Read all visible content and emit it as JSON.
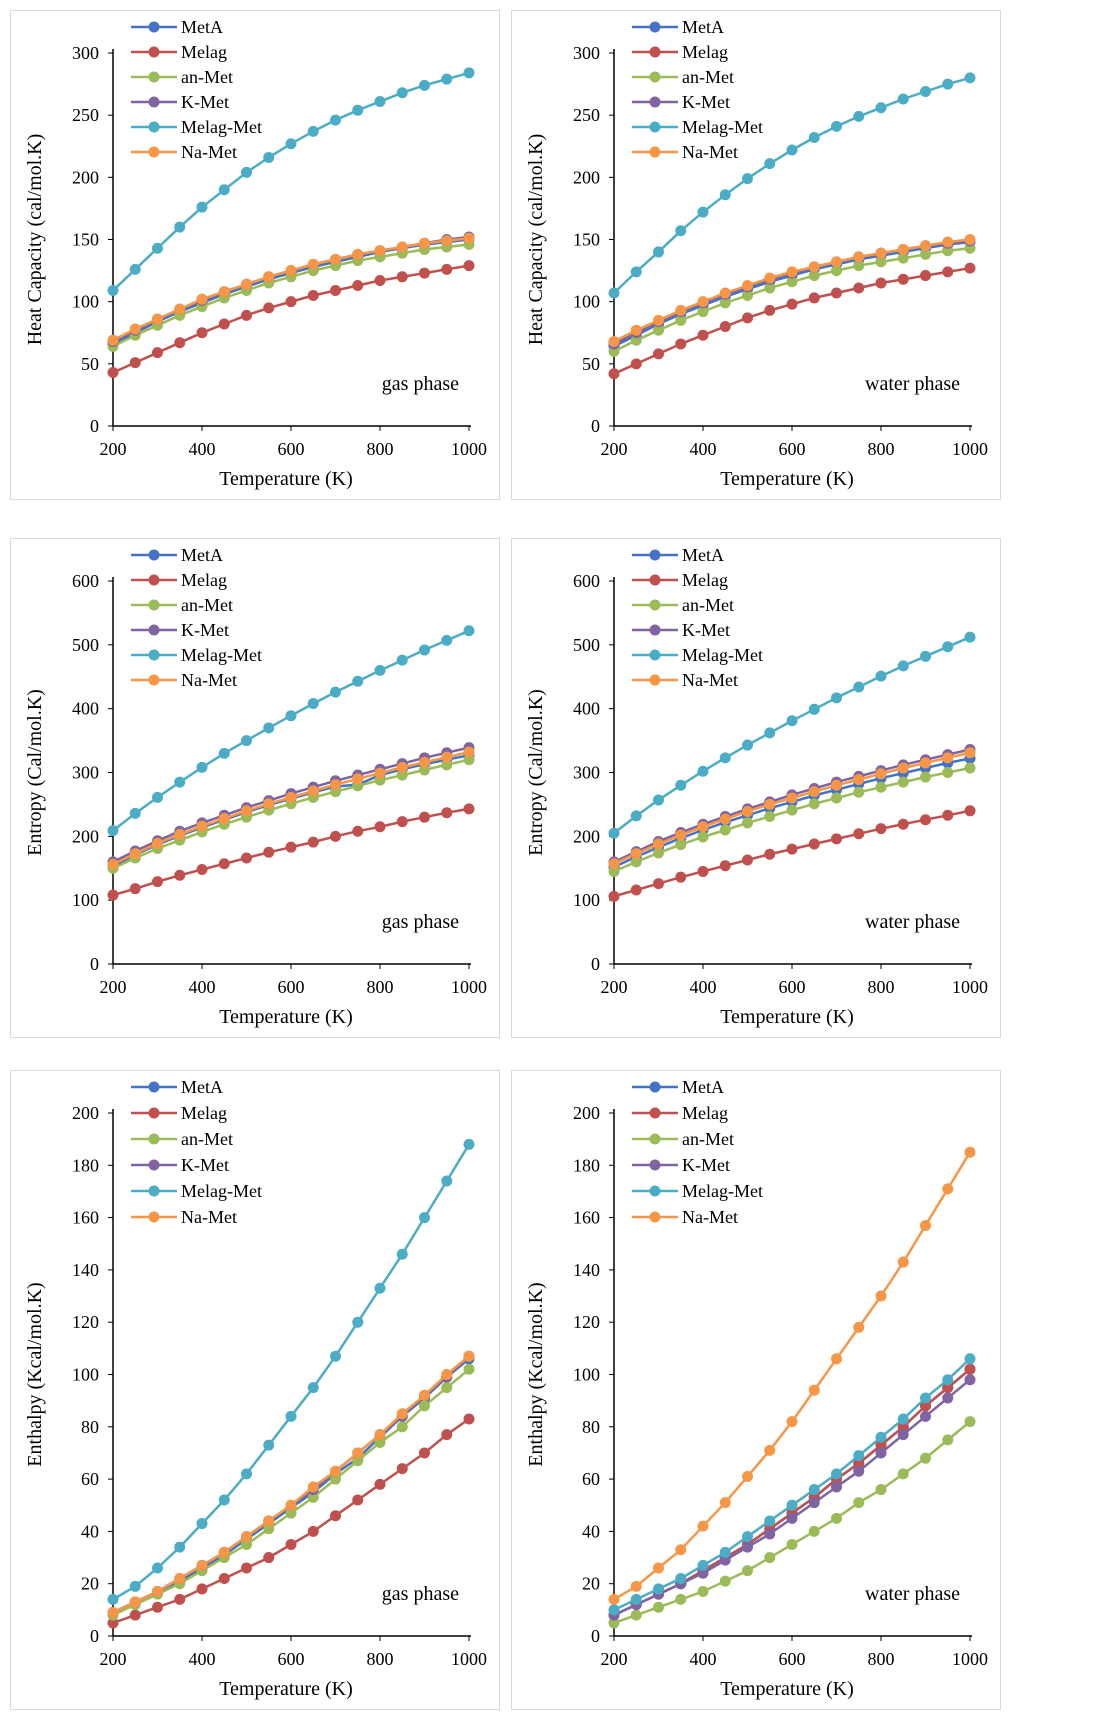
{
  "colors": {
    "MetA": "#4472C4",
    "Melag": "#C0504D",
    "an-Met": "#9BBB59",
    "K-Met": "#8064A2",
    "Melag-Met": "#4BACC6",
    "Na-Met": "#F79646"
  },
  "chart_data": [
    {
      "type": "line",
      "xlabel": "Temperature (K)",
      "ylabel": "Heat Capacity (cal/mol.K)",
      "annotation": "gas phase",
      "xlim": [
        200,
        1000
      ],
      "ylim": [
        0,
        300
      ],
      "yticks": [
        "0",
        "50",
        "100",
        "150",
        "200",
        "250",
        "300"
      ],
      "xticks": [
        "200",
        "400",
        "600",
        "800",
        "1000"
      ],
      "x": [
        200,
        250,
        300,
        350,
        400,
        450,
        500,
        550,
        600,
        650,
        700,
        750,
        800,
        850,
        900,
        950,
        1000
      ],
      "legend_position": "top-left",
      "series": [
        {
          "name": "MetA",
          "values": [
            66,
            75,
            84,
            92,
            99,
            106,
            112,
            118,
            123,
            128,
            132,
            136,
            140,
            143,
            146,
            148,
            150
          ]
        },
        {
          "name": "Melag",
          "values": [
            43,
            51,
            59,
            67,
            75,
            82,
            89,
            95,
            100,
            105,
            109,
            113,
            117,
            120,
            123,
            126,
            129
          ]
        },
        {
          "name": "an-Met",
          "values": [
            64,
            73,
            81,
            89,
            96,
            103,
            109,
            115,
            120,
            125,
            129,
            133,
            136,
            139,
            142,
            144,
            146
          ]
        },
        {
          "name": "K-Met",
          "values": [
            68,
            77,
            86,
            94,
            101,
            108,
            114,
            120,
            125,
            130,
            134,
            138,
            141,
            144,
            147,
            150,
            152
          ]
        },
        {
          "name": "Melag-Met",
          "values": [
            109,
            126,
            143,
            160,
            176,
            190,
            204,
            216,
            227,
            237,
            246,
            254,
            261,
            268,
            274,
            279,
            284
          ]
        },
        {
          "name": "Na-Met",
          "values": [
            69,
            78,
            86,
            94,
            102,
            108,
            114,
            120,
            125,
            130,
            134,
            138,
            141,
            144,
            147,
            149,
            151
          ]
        }
      ]
    },
    {
      "type": "line",
      "xlabel": "Temperature (K)",
      "ylabel": "Heat Capacity (cal/mol.K)",
      "annotation": "water phase",
      "xlim": [
        200,
        1000
      ],
      "ylim": [
        0,
        300
      ],
      "yticks": [
        "0",
        "50",
        "100",
        "150",
        "200",
        "250",
        "300"
      ],
      "xticks": [
        "200",
        "400",
        "600",
        "800",
        "1000"
      ],
      "x": [
        200,
        250,
        300,
        350,
        400,
        450,
        500,
        550,
        600,
        650,
        700,
        750,
        800,
        850,
        900,
        950,
        1000
      ],
      "legend_position": "top-left",
      "series": [
        {
          "name": "MetA",
          "values": [
            64,
            73,
            82,
            90,
            97,
            104,
            110,
            116,
            121,
            126,
            130,
            134,
            137,
            140,
            143,
            146,
            148
          ]
        },
        {
          "name": "Melag",
          "values": [
            42,
            50,
            58,
            66,
            73,
            80,
            87,
            93,
            98,
            103,
            107,
            111,
            115,
            118,
            121,
            124,
            127
          ]
        },
        {
          "name": "an-Met",
          "values": [
            60,
            69,
            77,
            85,
            92,
            99,
            105,
            111,
            116,
            121,
            125,
            129,
            132,
            135,
            138,
            141,
            143
          ]
        },
        {
          "name": "K-Met",
          "values": [
            66,
            75,
            84,
            92,
            99,
            106,
            112,
            118,
            123,
            128,
            132,
            136,
            139,
            142,
            145,
            147,
            149
          ]
        },
        {
          "name": "Melag-Met",
          "values": [
            107,
            124,
            140,
            157,
            172,
            186,
            199,
            211,
            222,
            232,
            241,
            249,
            256,
            263,
            269,
            275,
            280
          ]
        },
        {
          "name": "Na-Met",
          "values": [
            68,
            77,
            85,
            93,
            100,
            107,
            113,
            119,
            124,
            128,
            132,
            136,
            139,
            142,
            145,
            148,
            150
          ]
        }
      ]
    },
    {
      "type": "line",
      "xlabel": "Temperature (K)",
      "ylabel": "Entropy (Cal/mol.K)",
      "annotation": "gas phase",
      "xlim": [
        200,
        1000
      ],
      "ylim": [
        0,
        600
      ],
      "yticks": [
        "0",
        "100",
        "200",
        "300",
        "400",
        "500",
        "600"
      ],
      "xticks": [
        "200",
        "400",
        "600",
        "800",
        "1000"
      ],
      "x": [
        200,
        250,
        300,
        350,
        400,
        450,
        500,
        550,
        600,
        650,
        700,
        750,
        800,
        850,
        900,
        950,
        1000
      ],
      "legend_position": "top-left",
      "series": [
        {
          "name": "MetA",
          "values": [
            153,
            171,
            187,
            201,
            214,
            226,
            238,
            249,
            259,
            269,
            278,
            281,
            296,
            305,
            313,
            320,
            327
          ]
        },
        {
          "name": "Melag",
          "values": [
            108,
            118,
            129,
            139,
            148,
            157,
            166,
            175,
            183,
            191,
            200,
            208,
            215,
            223,
            230,
            237,
            243
          ]
        },
        {
          "name": "an-Met",
          "values": [
            150,
            166,
            181,
            194,
            207,
            219,
            230,
            241,
            251,
            261,
            270,
            279,
            288,
            296,
            304,
            312,
            320
          ]
        },
        {
          "name": "K-Met",
          "values": [
            160,
            177,
            193,
            208,
            221,
            233,
            245,
            256,
            267,
            277,
            287,
            296,
            305,
            314,
            323,
            331,
            339
          ]
        },
        {
          "name": "Melag-Met",
          "values": [
            209,
            236,
            261,
            285,
            308,
            330,
            350,
            370,
            389,
            408,
            426,
            443,
            460,
            476,
            492,
            507,
            522
          ]
        },
        {
          "name": "Na-Met",
          "values": [
            156,
            173,
            189,
            203,
            216,
            228,
            240,
            251,
            261,
            271,
            281,
            290,
            299,
            308,
            316,
            324,
            332
          ]
        }
      ]
    },
    {
      "type": "line",
      "xlabel": "Temperature (K)",
      "ylabel": "Entropy (Cal/mol.K)",
      "annotation": "water phase",
      "xlim": [
        200,
        1000
      ],
      "ylim": [
        0,
        600
      ],
      "yticks": [
        "0",
        "100",
        "200",
        "300",
        "400",
        "500",
        "600"
      ],
      "xticks": [
        "200",
        "400",
        "600",
        "800",
        "1000"
      ],
      "x": [
        200,
        250,
        300,
        350,
        400,
        450,
        500,
        550,
        600,
        650,
        700,
        750,
        800,
        850,
        900,
        950,
        1000
      ],
      "legend_position": "top-left",
      "series": [
        {
          "name": "MetA",
          "values": [
            152,
            168,
            183,
            197,
            210,
            222,
            233,
            244,
            254,
            264,
            273,
            282,
            291,
            299,
            307,
            315,
            322
          ]
        },
        {
          "name": "Melag",
          "values": [
            106,
            116,
            126,
            136,
            145,
            154,
            163,
            172,
            180,
            188,
            196,
            204,
            212,
            219,
            226,
            233,
            240
          ]
        },
        {
          "name": "an-Met",
          "values": [
            145,
            160,
            174,
            187,
            199,
            210,
            221,
            231,
            241,
            251,
            260,
            269,
            277,
            285,
            293,
            300,
            307
          ]
        },
        {
          "name": "K-Met",
          "values": [
            160,
            176,
            192,
            206,
            219,
            231,
            243,
            254,
            265,
            275,
            285,
            294,
            303,
            312,
            320,
            328,
            336
          ]
        },
        {
          "name": "Melag-Met",
          "values": [
            205,
            232,
            257,
            280,
            302,
            323,
            343,
            362,
            381,
            399,
            417,
            434,
            451,
            467,
            482,
            497,
            512
          ]
        },
        {
          "name": "Na-Met",
          "values": [
            157,
            173,
            188,
            202,
            215,
            227,
            239,
            250,
            260,
            270,
            280,
            289,
            298,
            307,
            315,
            323,
            331
          ]
        }
      ]
    },
    {
      "type": "line",
      "xlabel": "Temperature (K)",
      "ylabel": "Enthalpy (Kcal/mol.K)",
      "annotation": "gas phase",
      "xlim": [
        200,
        1000
      ],
      "ylim": [
        0,
        200
      ],
      "yticks": [
        "0",
        "20",
        "40",
        "60",
        "80",
        "100",
        "120",
        "140",
        "160",
        "180",
        "200"
      ],
      "xticks": [
        "200",
        "400",
        "600",
        "800",
        "1000"
      ],
      "x": [
        200,
        250,
        300,
        350,
        400,
        450,
        500,
        550,
        600,
        650,
        700,
        750,
        800,
        850,
        900,
        950,
        1000
      ],
      "legend_position": "top-left",
      "series": [
        {
          "name": "MetA",
          "values": [
            9,
            13,
            17,
            21,
            26,
            31,
            37,
            43,
            49,
            55,
            62,
            68,
            76,
            84,
            91,
            99,
            106
          ]
        },
        {
          "name": "Melag",
          "values": [
            5,
            8,
            11,
            14,
            18,
            22,
            26,
            30,
            35,
            40,
            46,
            52,
            58,
            64,
            70,
            77,
            83
          ]
        },
        {
          "name": "an-Met",
          "values": [
            8,
            12,
            16,
            20,
            25,
            30,
            35,
            41,
            47,
            53,
            60,
            67,
            74,
            80,
            88,
            95,
            102
          ]
        },
        {
          "name": "K-Met",
          "values": [
            9,
            13,
            17,
            22,
            27,
            32,
            38,
            44,
            50,
            56,
            63,
            70,
            77,
            84,
            92,
            99,
            107
          ]
        },
        {
          "name": "Melag-Met",
          "values": [
            14,
            19,
            26,
            34,
            43,
            52,
            62,
            73,
            84,
            95,
            107,
            120,
            133,
            146,
            160,
            174,
            188
          ]
        },
        {
          "name": "Na-Met",
          "values": [
            9,
            13,
            17,
            22,
            27,
            32,
            38,
            44,
            50,
            57,
            63,
            70,
            77,
            85,
            92,
            100,
            107
          ]
        }
      ]
    },
    {
      "type": "line",
      "xlabel": "Temperature (K)",
      "ylabel": "Enthalpy (Kcal/mol.K)",
      "annotation": "water phase",
      "xlim": [
        200,
        1000
      ],
      "ylim": [
        0,
        200
      ],
      "yticks": [
        "0",
        "20",
        "40",
        "60",
        "80",
        "100",
        "120",
        "140",
        "160",
        "180",
        "200"
      ],
      "xticks": [
        "200",
        "400",
        "600",
        "800",
        "1000"
      ],
      "x": [
        200,
        250,
        300,
        350,
        400,
        450,
        500,
        550,
        600,
        650,
        700,
        750,
        800,
        850,
        900,
        950,
        1000
      ],
      "legend_position": "top-left",
      "series": [
        {
          "name": "MetA",
          "values": [
            8,
            12,
            16,
            20,
            25,
            30,
            35,
            41,
            47,
            53,
            60,
            66,
            73,
            80,
            88,
            95,
            102
          ]
        },
        {
          "name": "Melag",
          "values": [
            8,
            12,
            16,
            20,
            25,
            30,
            35,
            41,
            47,
            53,
            60,
            66,
            73,
            80,
            88,
            95,
            102
          ]
        },
        {
          "name": "an-Met",
          "values": [
            5,
            8,
            11,
            14,
            17,
            21,
            25,
            30,
            35,
            40,
            45,
            51,
            56,
            62,
            68,
            75,
            82
          ]
        },
        {
          "name": "K-Met",
          "values": [
            8,
            12,
            16,
            20,
            24,
            29,
            34,
            39,
            45,
            51,
            57,
            63,
            70,
            77,
            84,
            91,
            98
          ]
        },
        {
          "name": "Melag-Met",
          "values": [
            10,
            14,
            18,
            22,
            27,
            32,
            38,
            44,
            50,
            56,
            62,
            69,
            76,
            83,
            91,
            98,
            106
          ]
        },
        {
          "name": "Na-Met",
          "values": [
            14,
            19,
            26,
            33,
            42,
            51,
            61,
            71,
            82,
            94,
            106,
            118,
            130,
            143,
            157,
            171,
            185
          ]
        }
      ]
    }
  ]
}
